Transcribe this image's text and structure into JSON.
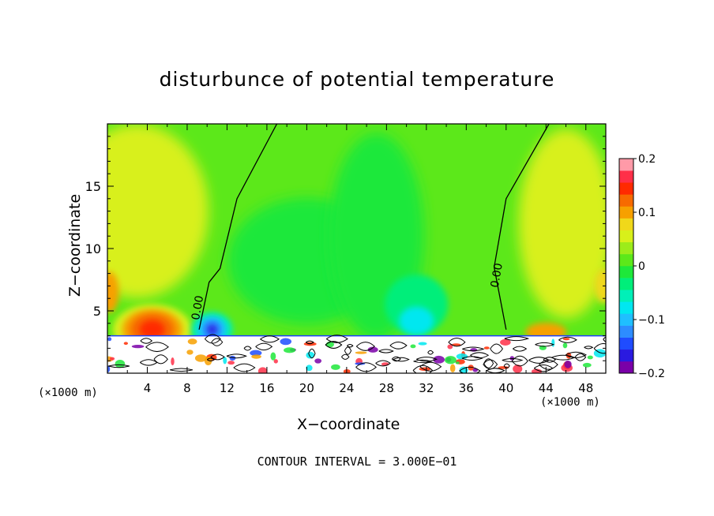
{
  "chart_data": {
    "type": "heatmap",
    "title": "disturbunce of potential temperature",
    "xlabel": "X−coordinate",
    "ylabel": "Z−coordinate",
    "x_unit": "(×1000 m)",
    "xlim": [
      0,
      50
    ],
    "ylim": [
      0,
      20
    ],
    "x_ticks": [
      4,
      8,
      12,
      16,
      20,
      24,
      28,
      32,
      36,
      40,
      44,
      48
    ],
    "y_ticks": [
      5,
      10,
      15
    ],
    "colorbar": {
      "range": [
        -0.2,
        0.2
      ],
      "tick_labels": [
        "0.2",
        "0.1",
        "0",
        "−0.1",
        "−0.2"
      ],
      "tick_values": [
        0.2,
        0.1,
        0,
        -0.1,
        -0.2
      ],
      "colors": [
        "#7a00a8",
        "#2a1ae0",
        "#1f4cff",
        "#2d8cff",
        "#1fbfff",
        "#00e7f0",
        "#00f0b8",
        "#00ee7a",
        "#1ee83a",
        "#5ce81a",
        "#9cec1a",
        "#d8f01a",
        "#f0d81a",
        "#f7a000",
        "#f76a00",
        "#ff2a00",
        "#ff2f48",
        "#ff9aa8"
      ]
    },
    "contour_labels": [
      "0.00",
      "0.00"
    ],
    "annotation": "CONTOUR INTERVAL = 3.000E−01",
    "field_description": {
      "background": 0.02,
      "warm_anomaly": {
        "x": 4.5,
        "z": 3.5,
        "value": 0.14
      },
      "cold_anomaly": {
        "x": 10.5,
        "z": 3.5,
        "value": -0.17
      },
      "cool_plume": {
        "x": 31,
        "z": 5.5,
        "value": -0.06
      },
      "warm_anomaly_right": {
        "x": 44,
        "z": 4,
        "value": 0.09
      },
      "zero_contours": [
        {
          "points": [
            [
              9.2,
              3.5
            ],
            [
              10.2,
              7.3
            ],
            [
              11.3,
              8.4
            ],
            [
              13,
              14
            ],
            [
              17,
              20
            ]
          ]
        },
        {
          "points": [
            [
              40,
              3.5
            ],
            [
              38.8,
              8.5
            ],
            [
              40,
              14
            ],
            [
              44.3,
              20
            ]
          ]
        }
      ]
    }
  }
}
